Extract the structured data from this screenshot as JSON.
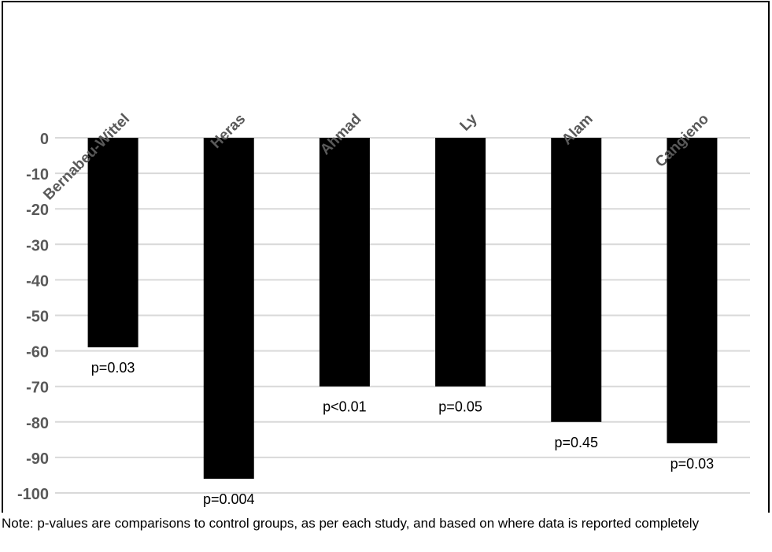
{
  "chart_data": {
    "type": "bar",
    "categories": [
      "Bernabeu-Wittel",
      "Heras",
      "Ahmad",
      "Ly",
      "Alam",
      "Cangieno"
    ],
    "values": [
      -59,
      -96,
      -70,
      -70,
      -80,
      -86
    ],
    "data_labels": [
      "p=0.03",
      "p=0.004",
      "p<0.01",
      "p=0.05",
      "p=0.45",
      "p=0.03"
    ],
    "title": "",
    "xlabel": "",
    "ylabel": "",
    "ylim": [
      -100,
      0
    ],
    "yticks": [
      0,
      -10,
      -20,
      -30,
      -40,
      -50,
      -60,
      -70,
      -80,
      -90,
      -100
    ],
    "x_axis_position": "top",
    "category_label_rotation": "diagonal",
    "grid": true,
    "legend": "none",
    "colors": {
      "bar": "#000000",
      "grid": "#d9d9d9",
      "tick_label": "#595959",
      "data_label": "#000000"
    }
  },
  "footnote": "Note: p-values are comparisons to control groups, as per each study, and based on where data is reported completely"
}
